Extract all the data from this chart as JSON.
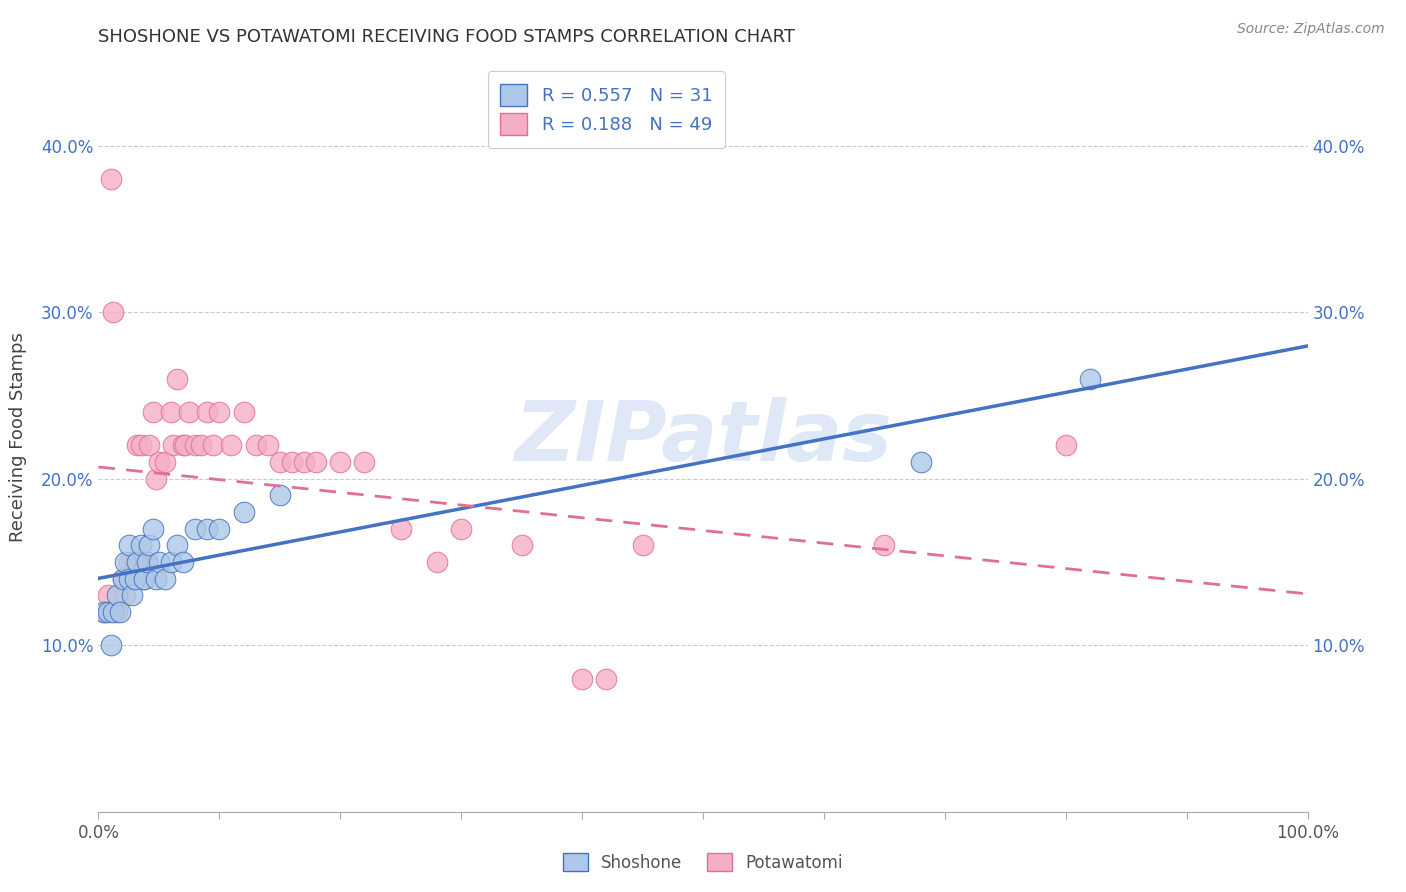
{
  "title": "SHOSHONE VS POTAWATOMI RECEIVING FOOD STAMPS CORRELATION CHART",
  "source": "Source: ZipAtlas.com",
  "ylabel": "Receiving Food Stamps",
  "xlim": [
    0.0,
    1.0
  ],
  "ylim": [
    0.0,
    0.45
  ],
  "ytick_positions": [
    0.0,
    0.1,
    0.2,
    0.3,
    0.4
  ],
  "ytick_labels": [
    "",
    "10.0%",
    "20.0%",
    "30.0%",
    "40.0%"
  ],
  "xtick_positions": [
    0.0,
    0.1,
    0.2,
    0.3,
    0.4,
    0.5,
    0.6,
    0.7,
    0.8,
    0.9,
    1.0
  ],
  "xtick_labels": [
    "0.0%",
    "",
    "",
    "",
    "",
    "",
    "",
    "",
    "",
    "",
    "100.0%"
  ],
  "shoshone_R": 0.557,
  "shoshone_N": 31,
  "potawatomi_R": 0.188,
  "potawatomi_N": 49,
  "shoshone_color": "#adc8e8",
  "potawatomi_color": "#f5afc5",
  "shoshone_edge_color": "#4472c4",
  "potawatomi_edge_color": "#e07090",
  "shoshone_line_color": "#4472c4",
  "potawatomi_line_color": "#e07090",
  "potawatomi_line_style": "dashed",
  "shoshone_x": [
    0.005,
    0.008,
    0.01,
    0.012,
    0.015,
    0.018,
    0.02,
    0.022,
    0.025,
    0.025,
    0.028,
    0.03,
    0.032,
    0.035,
    0.038,
    0.04,
    0.042,
    0.045,
    0.048,
    0.05,
    0.055,
    0.06,
    0.065,
    0.07,
    0.08,
    0.09,
    0.1,
    0.12,
    0.15,
    0.68,
    0.82
  ],
  "shoshone_y": [
    0.12,
    0.12,
    0.1,
    0.12,
    0.13,
    0.12,
    0.14,
    0.15,
    0.14,
    0.16,
    0.13,
    0.14,
    0.15,
    0.16,
    0.14,
    0.15,
    0.16,
    0.17,
    0.14,
    0.15,
    0.14,
    0.15,
    0.16,
    0.15,
    0.17,
    0.17,
    0.17,
    0.18,
    0.19,
    0.21,
    0.26
  ],
  "potawatomi_x": [
    0.005,
    0.008,
    0.01,
    0.012,
    0.015,
    0.02,
    0.022,
    0.025,
    0.028,
    0.03,
    0.032,
    0.035,
    0.038,
    0.04,
    0.042,
    0.045,
    0.048,
    0.05,
    0.055,
    0.06,
    0.062,
    0.065,
    0.07,
    0.072,
    0.075,
    0.08,
    0.085,
    0.09,
    0.095,
    0.1,
    0.11,
    0.12,
    0.13,
    0.14,
    0.15,
    0.16,
    0.17,
    0.18,
    0.2,
    0.22,
    0.25,
    0.28,
    0.3,
    0.35,
    0.4,
    0.42,
    0.45,
    0.65,
    0.8
  ],
  "potawatomi_y": [
    0.12,
    0.13,
    0.38,
    0.3,
    0.12,
    0.14,
    0.13,
    0.15,
    0.14,
    0.15,
    0.22,
    0.22,
    0.14,
    0.15,
    0.22,
    0.24,
    0.2,
    0.21,
    0.21,
    0.24,
    0.22,
    0.26,
    0.22,
    0.22,
    0.24,
    0.22,
    0.22,
    0.24,
    0.22,
    0.24,
    0.22,
    0.24,
    0.22,
    0.22,
    0.21,
    0.21,
    0.21,
    0.21,
    0.21,
    0.21,
    0.17,
    0.15,
    0.17,
    0.16,
    0.08,
    0.08,
    0.16,
    0.16,
    0.22
  ],
  "watermark_text": "ZIPatlas",
  "watermark_color": "#c8daf0",
  "background_color": "#ffffff",
  "grid_color": "#cccccc",
  "grid_linestyle": "--"
}
